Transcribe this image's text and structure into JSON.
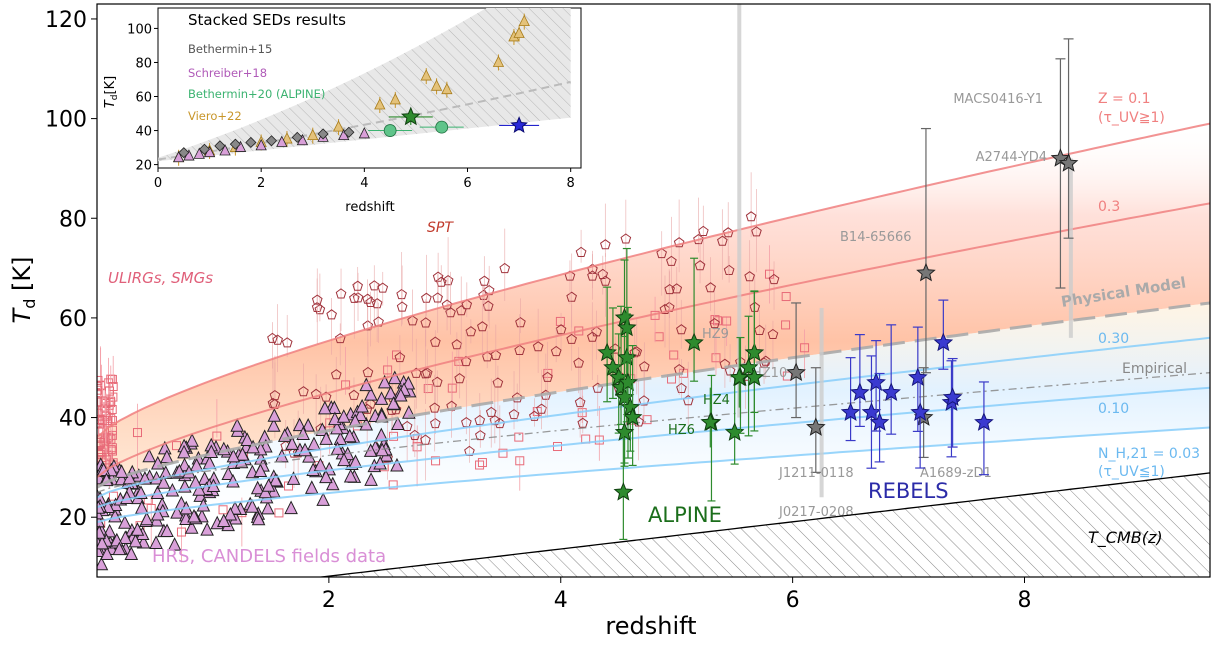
{
  "chart_data": [
    {
      "type": "scatter",
      "xlabel": "redshift",
      "ylabel": "T_d [K]",
      "xlim": [
        0,
        9.6
      ],
      "ylim": [
        8,
        123
      ],
      "xticks": [
        2,
        4,
        6,
        8
      ],
      "yticks": [
        20,
        40,
        60,
        80,
        100,
        120
      ],
      "grid": false,
      "tcmb_label": "T_CMB(z)",
      "labels": {
        "spt": "SPT",
        "ulirgs": "ULIRGs, SMGs",
        "hrs": "HRS, CANDELS fields data",
        "alpine": "ALPINE",
        "rebels": "REBELS",
        "physical": "Physical Model",
        "empirical": "Empirical",
        "z01": "Z = 0.1",
        "z01_tau": "(τ_UV≧1)",
        "z03": "0.3",
        "n030": "0.30",
        "n010": "0.10",
        "n003": "N_H,21 = 0.03",
        "n003_tau": "(τ_UV≦1)"
      },
      "curves": [
        {
          "name": "Z = 0.1",
          "color": "#f08080",
          "z": [
            0,
            9.6
          ],
          "t_at_0": 36,
          "t_at_end": 99
        },
        {
          "name": "0.3",
          "color": "#f08080",
          "z": [
            0,
            9.6
          ],
          "t_at_0": 28,
          "t_at_end": 83
        },
        {
          "name": "Physical Model",
          "color": "#aaaaaa",
          "z": [
            0,
            9.6
          ],
          "t_at_0": 26,
          "t_at_end": 63
        },
        {
          "name": "0.30",
          "color": "#87cefa",
          "z": [
            0,
            9.6
          ],
          "t_at_0": 24,
          "t_at_end": 56
        },
        {
          "name": "Empirical",
          "color": "#888888",
          "z": [
            0,
            9.6
          ],
          "t_at_0": 25,
          "t_at_end": 49
        },
        {
          "name": "0.10",
          "color": "#87cefa",
          "z": [
            0,
            9.6
          ],
          "t_at_0": 22,
          "t_at_end": 46
        },
        {
          "name": "N_H,21 = 0.03",
          "color": "#87cefa",
          "z": [
            0,
            9.6
          ],
          "t_at_0": 19,
          "t_at_end": 38
        }
      ],
      "named_sources": [
        {
          "name": "MACS0416-Y1",
          "z": 8.31,
          "td": 92,
          "err": [
            20,
            26
          ],
          "color": "#777777"
        },
        {
          "name": "A2744-YD4",
          "z": 8.38,
          "td": 91,
          "err": [
            25,
            15
          ],
          "color": "#777777"
        },
        {
          "name": "B14-65666",
          "z": 7.15,
          "td": 69,
          "err": [
            29,
            20
          ],
          "color": "#777777"
        },
        {
          "name": "J1211-0118",
          "z": 6.03,
          "td": 49,
          "err": [
            14,
            9
          ],
          "color": "#777777"
        },
        {
          "name": "J0217-0208",
          "z": 6.2,
          "td": 38,
          "err": [
            12,
            9
          ],
          "color": "#777777"
        },
        {
          "name": "A1689-zD1",
          "z": 7.13,
          "td": 40,
          "err": [
            10,
            8
          ],
          "color": "#777777"
        },
        {
          "name": "HZ9",
          "z": 5.54,
          "td": 55,
          "err": [
            25,
            12
          ],
          "color": "#777777"
        },
        {
          "name": "HZ10",
          "z": 5.66,
          "td": 47,
          "err": [
            10,
            8
          ],
          "color": "#777777"
        },
        {
          "name": "HZ4",
          "z": 5.54,
          "td": 48,
          "err": [
            8,
            6
          ],
          "color": "#2e7d32"
        },
        {
          "name": "HZ6",
          "z": 5.29,
          "td": 39,
          "err": [
            7,
            5
          ],
          "color": "#2e7d32"
        }
      ],
      "alpine": [
        [
          4.4,
          53
        ],
        [
          4.45,
          50
        ],
        [
          4.5,
          48
        ],
        [
          4.52,
          46
        ],
        [
          4.55,
          60
        ],
        [
          4.55,
          44
        ],
        [
          4.57,
          58
        ],
        [
          4.57,
          52
        ],
        [
          4.58,
          47
        ],
        [
          4.6,
          42
        ],
        [
          4.62,
          40
        ],
        [
          4.55,
          37
        ],
        [
          4.54,
          25
        ],
        [
          5.15,
          55
        ],
        [
          5.3,
          39
        ],
        [
          5.5,
          37
        ],
        [
          5.55,
          48
        ],
        [
          5.62,
          50
        ],
        [
          5.67,
          53
        ],
        [
          5.67,
          48
        ]
      ],
      "rebels": [
        [
          6.5,
          41
        ],
        [
          6.58,
          45
        ],
        [
          6.68,
          41
        ],
        [
          6.72,
          47
        ],
        [
          6.75,
          39
        ],
        [
          6.85,
          45
        ],
        [
          7.08,
          48
        ],
        [
          7.1,
          41
        ],
        [
          7.3,
          55
        ],
        [
          7.37,
          43
        ],
        [
          7.38,
          44
        ],
        [
          7.65,
          39
        ]
      ],
      "hrs_triangles_count": 260,
      "pentagons_count": 150,
      "squares_count": 120
    },
    {
      "type": "scatter",
      "title": "Stacked SEDs results",
      "xlabel": "redshift",
      "ylabel": "T_d[K]",
      "xlim": [
        0,
        8.2
      ],
      "ylim": [
        18,
        112
      ],
      "xticks": [
        0,
        2,
        4,
        6,
        8
      ],
      "yticks": [
        20,
        40,
        60,
        80,
        100
      ],
      "legend": [
        "Bethermin+15",
        "Schreiber+18",
        "Bethermin+20 (ALPINE)",
        "Viero+22"
      ],
      "legend_colors": [
        "#555555",
        "#b05ab8",
        "#3cb371",
        "#c8962a"
      ],
      "bethermin15": [
        [
          0.5,
          27
        ],
        [
          0.9,
          29
        ],
        [
          1.2,
          31
        ],
        [
          1.5,
          32
        ],
        [
          1.8,
          33
        ],
        [
          2.2,
          34
        ],
        [
          2.7,
          36
        ],
        [
          3.2,
          38
        ],
        [
          3.7,
          39
        ],
        [
          4.5,
          40
        ]
      ],
      "schreiber18": [
        [
          0.4,
          24
        ],
        [
          0.6,
          25
        ],
        [
          0.8,
          26
        ],
        [
          1.0,
          27
        ],
        [
          1.3,
          28
        ],
        [
          1.6,
          30
        ],
        [
          2.0,
          31
        ],
        [
          2.4,
          33
        ],
        [
          2.8,
          34
        ],
        [
          3.2,
          36
        ],
        [
          3.6,
          37
        ],
        [
          4.0,
          38
        ]
      ],
      "alpine": [
        [
          4.5,
          40
        ],
        [
          5.5,
          42
        ]
      ],
      "viero22": [
        [
          0.4,
          24
        ],
        [
          1.0,
          28
        ],
        [
          1.5,
          30
        ],
        [
          2.0,
          33
        ],
        [
          2.5,
          35
        ],
        [
          3.0,
          37
        ],
        [
          3.5,
          42
        ],
        [
          4.3,
          55
        ],
        [
          4.6,
          58
        ],
        [
          5.2,
          72
        ],
        [
          5.4,
          66
        ],
        [
          5.6,
          64
        ],
        [
          6.6,
          80
        ],
        [
          6.9,
          95
        ],
        [
          7.0,
          97
        ],
        [
          7.1,
          104
        ]
      ],
      "star_green": [
        4.9,
        48
      ],
      "star_blue": [
        7.0,
        43
      ]
    }
  ]
}
